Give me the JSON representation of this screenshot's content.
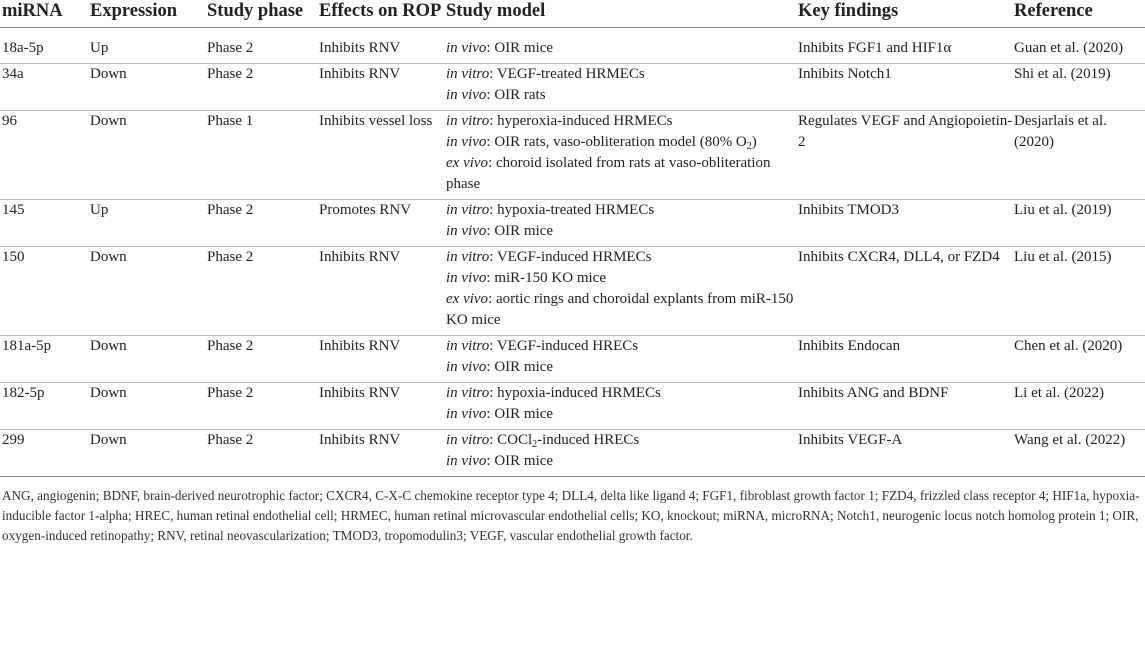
{
  "headers": [
    "miRNA",
    "Expression",
    "Study phase",
    "Effects on ROP",
    "Study model",
    "Key findings",
    "Reference"
  ],
  "rows": [
    {
      "mirna": "18a-5p",
      "expression": "Up",
      "phase": "Phase 2",
      "effect": "Inhibits RNV",
      "model": [
        {
          "it": "in vivo",
          "rest": ": OIR mice"
        }
      ],
      "findings": "Inhibits FGF1 and HIF1α",
      "reference": "Guan et al. (2020)"
    },
    {
      "mirna": "34a",
      "expression": "Down",
      "phase": "Phase 2",
      "effect": "Inhibits RNV",
      "model": [
        {
          "it": "in vitro",
          "rest": ": VEGF-treated HRMECs"
        },
        {
          "it": "in vivo",
          "rest": ": OIR rats"
        }
      ],
      "findings": "Inhibits Notch1",
      "reference": "Shi et al. (2019)"
    },
    {
      "mirna": "96",
      "expression": "Down",
      "phase": "Phase 1",
      "effect": "Inhibits vessel loss",
      "model": [
        {
          "it": "in vitro",
          "rest": ": hyperoxia-induced HRMECs"
        },
        {
          "it": "in vivo",
          "rest": ": OIR rats, vaso-obliteration model (80% O",
          "sub": "2",
          "after": ")"
        },
        {
          "it": "ex vivo",
          "rest": ": choroid isolated from rats at vaso-obliteration phase"
        }
      ],
      "findings": "Regulates VEGF and Angiopoietin-2",
      "reference": "Desjarlais et al. (2020)"
    },
    {
      "mirna": "145",
      "expression": "Up",
      "phase": "Phase 2",
      "effect": "Promotes RNV",
      "model": [
        {
          "it": "in vitro",
          "rest": ": hypoxia-treated HRMECs"
        },
        {
          "it": "in vivo",
          "rest": ": OIR mice"
        }
      ],
      "findings": "Inhibits TMOD3",
      "reference": "Liu et al. (2019)"
    },
    {
      "mirna": "150",
      "expression": "Down",
      "phase": "Phase 2",
      "effect": "Inhibits RNV",
      "model": [
        {
          "it": "in vitro",
          "rest": ": VEGF-induced HRMECs"
        },
        {
          "it": "in vivo",
          "rest": ": miR-150 KO mice"
        },
        {
          "it": "ex vivo",
          "rest": ": aortic rings and choroidal explants from miR-150 KO mice"
        }
      ],
      "findings": "Inhibits CXCR4, DLL4, or FZD4",
      "reference": "Liu et al. (2015)"
    },
    {
      "mirna": "181a-5p",
      "expression": "Down",
      "phase": "Phase 2",
      "effect": "Inhibits RNV",
      "model": [
        {
          "it": "in vitro",
          "rest": ": VEGF-induced HRECs"
        },
        {
          "it": "in vivo",
          "rest": ": OIR mice"
        }
      ],
      "findings": "Inhibits Endocan",
      "reference": "Chen et al. (2020)"
    },
    {
      "mirna": "182-5p",
      "expression": "Down",
      "phase": "Phase 2",
      "effect": "Inhibits RNV",
      "model": [
        {
          "it": "in vitro",
          "rest": ": hypoxia-induced HRMECs"
        },
        {
          "it": "in vivo",
          "rest": ": OIR mice"
        }
      ],
      "findings": "Inhibits ANG and BDNF",
      "reference": "Li et al. (2022)"
    },
    {
      "mirna": "299",
      "expression": "Down",
      "phase": "Phase 2",
      "effect": "Inhibits RNV",
      "model": [
        {
          "it": "in vitro",
          "rest": ": COCl",
          "sub": "2",
          "after": "-induced HRECs"
        },
        {
          "it": "in vivo",
          "rest": ": OIR mice"
        }
      ],
      "findings": "Inhibits VEGF-A",
      "reference": "Wang et al. (2022)"
    }
  ],
  "footnote": "ANG, angiogenin; BDNF, brain-derived neurotrophic factor; CXCR4, C-X-C chemokine receptor type 4; DLL4, delta like ligand 4; FGF1, fibroblast growth factor 1; FZD4, frizzled class receptor 4; HIF1a, hypoxia-inducible factor 1-alpha; HREC, human retinal endothelial cell; HRMEC, human retinal microvascular endothelial cells; KO, knockout; miRNA, microRNA; Notch1, neurogenic locus notch homolog protein 1; OIR, oxygen-induced retinopathy; RNV, retinal neovascularization; TMOD3, tropomodulin3; VEGF, vascular endothelial growth factor."
}
